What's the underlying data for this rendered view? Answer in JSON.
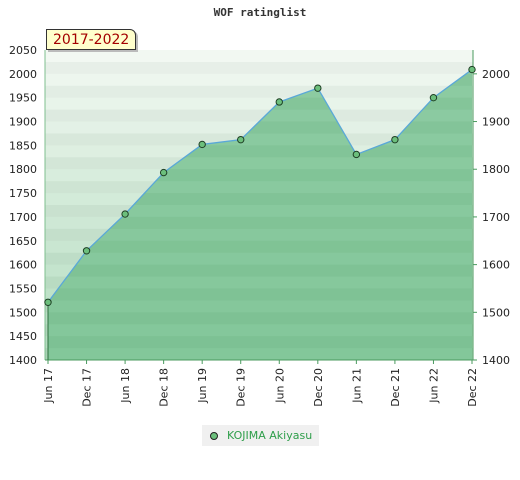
{
  "chart_data": {
    "type": "area",
    "title": "WOF ratinglist",
    "period_label": "2017-2022",
    "x": [
      "Jun 17",
      "Dec 17",
      "Jun 18",
      "Dec 18",
      "Jun 19",
      "Dec 19",
      "Jun 20",
      "Dec 20",
      "Jun 21",
      "Dec 21",
      "Jun 22",
      "Dec 22"
    ],
    "series": [
      {
        "name": "KOJIMA Akiyasu",
        "values": [
          1521,
          1629,
          1706,
          1793,
          1852,
          1862,
          1941,
          1970,
          1831,
          1862,
          1950,
          2009
        ]
      }
    ],
    "ylim_left": [
      1400,
      2050
    ],
    "yticks_left": [
      1400,
      1450,
      1500,
      1550,
      1600,
      1650,
      1700,
      1750,
      1800,
      1850,
      1900,
      1950,
      2000,
      2050
    ],
    "yticks_right": [
      1400,
      1500,
      1600,
      1700,
      1800,
      1900,
      2000
    ],
    "colors": {
      "line": "#5aa8d8",
      "fill": "#7cc495",
      "marker": "#6cbf7c"
    }
  }
}
